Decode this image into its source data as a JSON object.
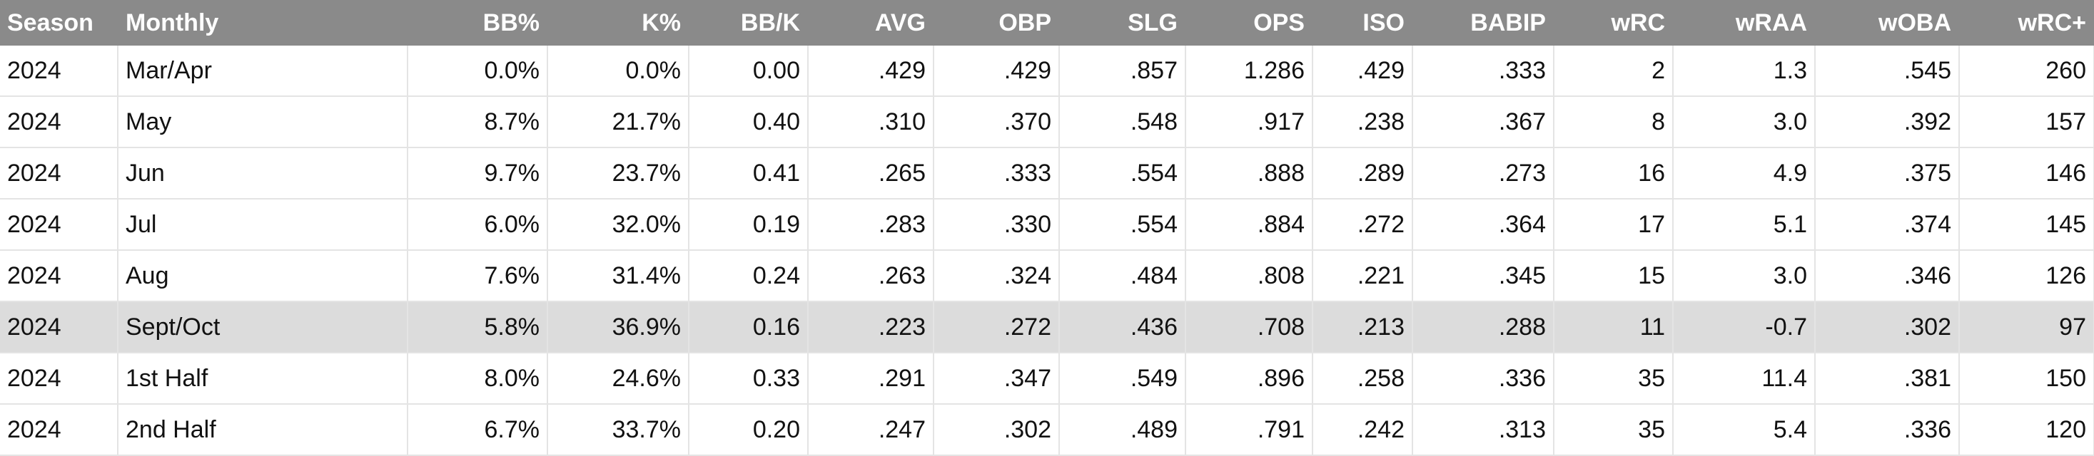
{
  "table": {
    "header": [
      "Season",
      "Monthly",
      "BB%",
      "K%",
      "BB/K",
      "AVG",
      "OBP",
      "SLG",
      "OPS",
      "ISO",
      "BABIP",
      "wRC",
      "wRAA",
      "wOBA",
      "wRC+"
    ],
    "rows": [
      [
        "2024",
        "Mar/Apr",
        "0.0%",
        "0.0%",
        "0.00",
        ".429",
        ".429",
        ".857",
        "1.286",
        ".429",
        ".333",
        "2",
        "1.3",
        ".545",
        "260"
      ],
      [
        "2024",
        "May",
        "8.7%",
        "21.7%",
        "0.40",
        ".310",
        ".370",
        ".548",
        ".917",
        ".238",
        ".367",
        "8",
        "3.0",
        ".392",
        "157"
      ],
      [
        "2024",
        "Jun",
        "9.7%",
        "23.7%",
        "0.41",
        ".265",
        ".333",
        ".554",
        ".888",
        ".289",
        ".273",
        "16",
        "4.9",
        ".375",
        "146"
      ],
      [
        "2024",
        "Jul",
        "6.0%",
        "32.0%",
        "0.19",
        ".283",
        ".330",
        ".554",
        ".884",
        ".272",
        ".364",
        "17",
        "5.1",
        ".374",
        "145"
      ],
      [
        "2024",
        "Aug",
        "7.6%",
        "31.4%",
        "0.24",
        ".263",
        ".324",
        ".484",
        ".808",
        ".221",
        ".345",
        "15",
        "3.0",
        ".346",
        "126"
      ],
      [
        "2024",
        "Sept/Oct",
        "5.8%",
        "36.9%",
        "0.16",
        ".223",
        ".272",
        ".436",
        ".708",
        ".213",
        ".288",
        "11",
        "-0.7",
        ".302",
        "97"
      ],
      [
        "2024",
        "1st Half",
        "8.0%",
        "24.6%",
        "0.33",
        ".291",
        ".347",
        ".549",
        ".896",
        ".258",
        ".336",
        "35",
        "11.4",
        ".381",
        "150"
      ],
      [
        "2024",
        "2nd Half",
        "6.7%",
        "33.7%",
        "0.20",
        ".247",
        ".302",
        ".489",
        ".791",
        ".242",
        ".313",
        "35",
        "5.4",
        ".336",
        "120"
      ]
    ]
  }
}
